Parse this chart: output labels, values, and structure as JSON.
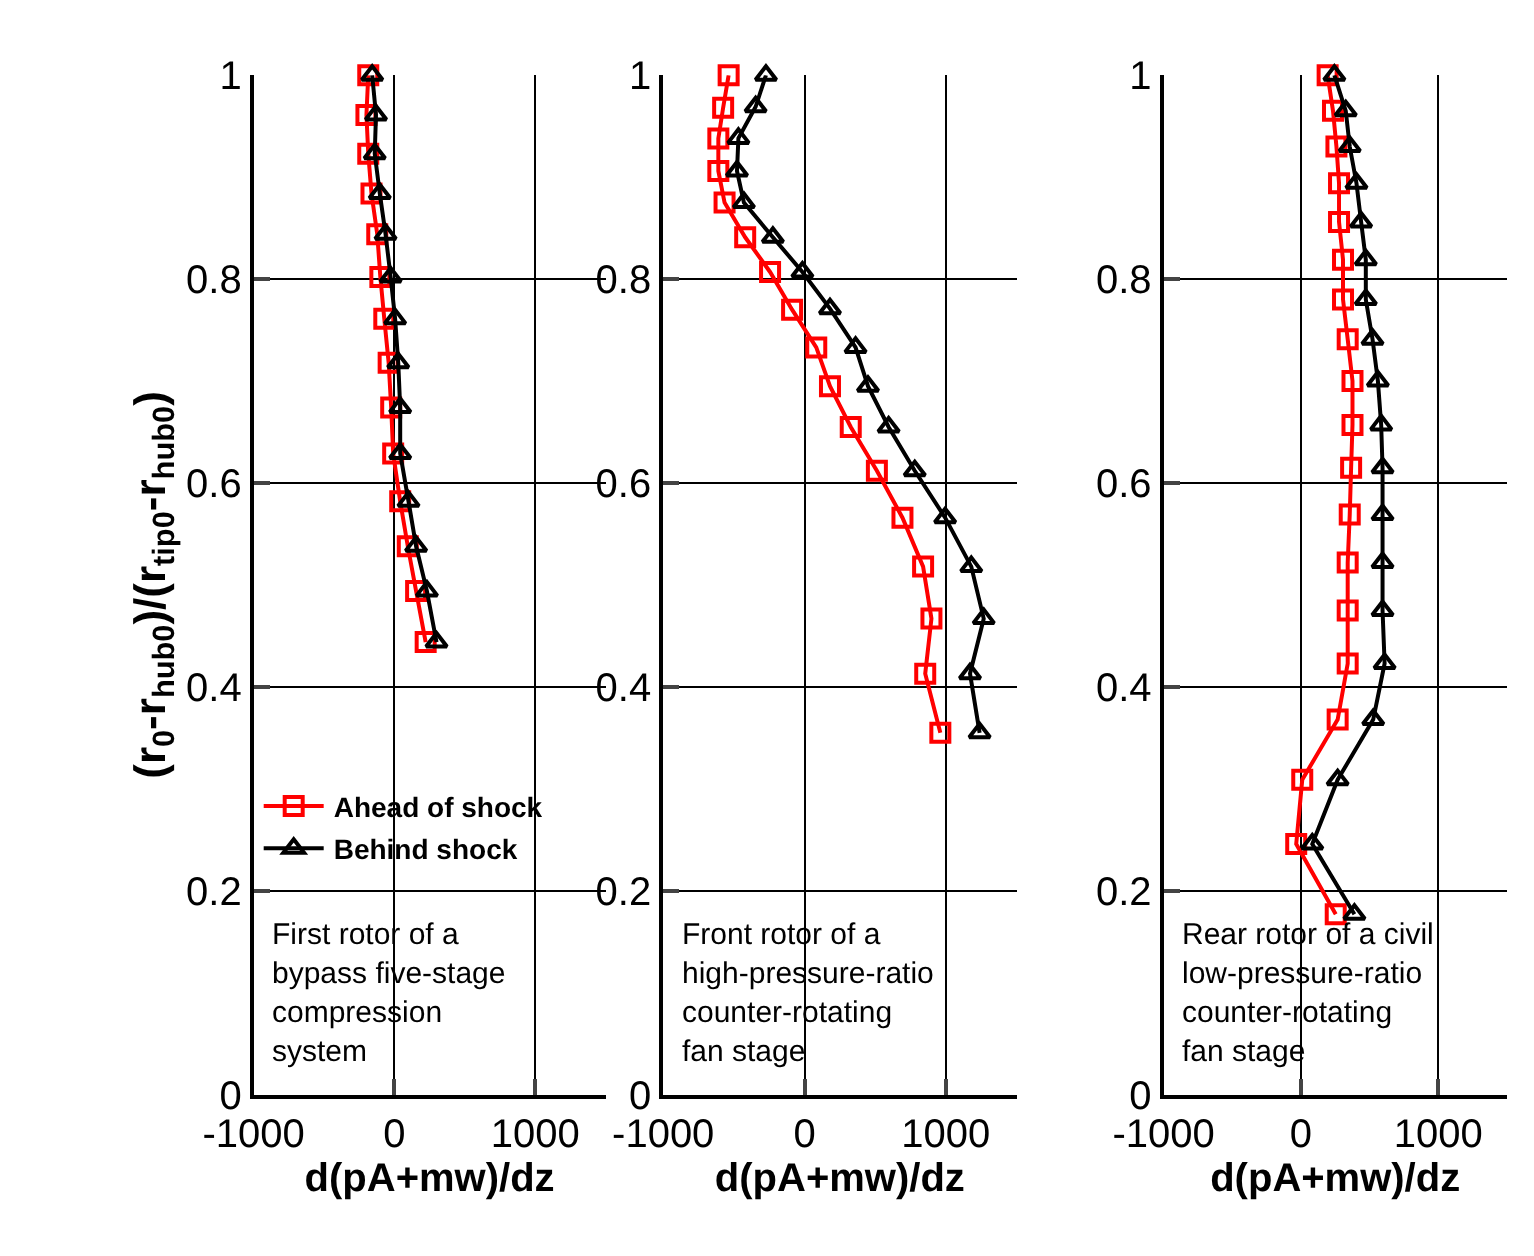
{
  "chart_data": [
    {
      "type": "line",
      "xlabel": "d(pA+mw)/dz",
      "ylabel": "(r$_{0}$-r$_{hub0}$)/(r$_{tip0}$-r$_{hub0}$)",
      "xlim": [
        -1000,
        1500
      ],
      "ylim": [
        0,
        1
      ],
      "xticks": [
        -1000,
        0,
        1000
      ],
      "yticks": [
        0,
        0.2,
        0.4,
        0.6,
        0.8,
        1
      ],
      "grid": true,
      "legend": "bottom left",
      "line_style": "solid",
      "annotations": [
        "First rotor of a\nbypass five-stage\ncompression\nsystem"
      ],
      "series": [
        {
          "name": "Ahead of shock",
          "color": "#ff0000",
          "marker": "square",
          "x": [
            -186,
            -199,
            -186,
            -163,
            -122,
            -100,
            -72,
            -41,
            -23,
            -9,
            41,
            95,
            154,
            222
          ],
          "values": [
            1.0,
            0.961,
            0.923,
            0.884,
            0.844,
            0.802,
            0.761,
            0.718,
            0.674,
            0.629,
            0.582,
            0.538,
            0.494,
            0.444
          ]
        },
        {
          "name": "Behind shock",
          "color": "#000000",
          "marker": "triangle",
          "x": [
            -158,
            -131,
            -140,
            -104,
            -63,
            -27,
            5,
            27,
            41,
            41,
            100,
            154,
            231,
            299
          ],
          "values": [
            1.0,
            0.961,
            0.923,
            0.884,
            0.844,
            0.802,
            0.761,
            0.718,
            0.674,
            0.629,
            0.582,
            0.538,
            0.494,
            0.444
          ]
        }
      ]
    },
    {
      "type": "line",
      "xlabel": "d(pA+mw)/dz",
      "xlim": [
        -1000,
        1500
      ],
      "ylim": [
        0,
        1
      ],
      "xticks": [
        -1000,
        0,
        1000
      ],
      "yticks": [
        0,
        0.2,
        0.4,
        0.6,
        0.8,
        1
      ],
      "grid": true,
      "line_style": "solid",
      "annotations": [
        "Front rotor of a\nhigh-pressure-ratio\ncounter-rotating\nfan stage"
      ],
      "series": [
        {
          "color": "#ff0000",
          "marker": "square",
          "x": [
            -537,
            -576,
            -610,
            -610,
            -566,
            -420,
            -244,
            -88,
            83,
            180,
            327,
            512,
            693,
            839,
            898,
            854,
            961
          ],
          "values": [
            1.0,
            0.968,
            0.938,
            0.906,
            0.875,
            0.841,
            0.807,
            0.77,
            0.733,
            0.695,
            0.655,
            0.612,
            0.566,
            0.518,
            0.467,
            0.413,
            0.355
          ]
        },
        {
          "color": "#000000",
          "marker": "triangle",
          "x": [
            -273,
            -346,
            -468,
            -478,
            -429,
            -224,
            -15,
            180,
            361,
            449,
            595,
            780,
            995,
            1180,
            1268,
            1171,
            1239
          ],
          "values": [
            1.0,
            0.969,
            0.938,
            0.906,
            0.875,
            0.841,
            0.807,
            0.771,
            0.733,
            0.695,
            0.655,
            0.612,
            0.566,
            0.518,
            0.467,
            0.413,
            0.355
          ]
        }
      ]
    },
    {
      "type": "line",
      "xlabel": "d(pA+mw)/dz",
      "xlim": [
        -1000,
        1500
      ],
      "ylim": [
        0,
        1
      ],
      "xticks": [
        -1000,
        0,
        1000
      ],
      "yticks": [
        0,
        0.2,
        0.4,
        0.6,
        0.8,
        1
      ],
      "grid": true,
      "line_style": "solid",
      "annotations": [
        "Rear rotor of a civil\nlow-pressure-ratio\ncounter-rotating\nfan stage"
      ],
      "series": [
        {
          "color": "#ff0000",
          "marker": "square",
          "x": [
            195,
            234,
            259,
            278,
            278,
            307,
            307,
            341,
            376,
            376,
            366,
            356,
            341,
            341,
            341,
            268,
            10,
            -34,
            254
          ],
          "values": [
            1.0,
            0.965,
            0.93,
            0.894,
            0.856,
            0.819,
            0.78,
            0.741,
            0.7,
            0.657,
            0.615,
            0.569,
            0.522,
            0.475,
            0.423,
            0.368,
            0.309,
            0.246,
            0.177
          ]
        },
        {
          "color": "#000000",
          "marker": "triangle",
          "x": [
            244,
            327,
            356,
            405,
            439,
            473,
            473,
            522,
            561,
            585,
            595,
            595,
            595,
            595,
            610,
            527,
            268,
            83,
            390
          ],
          "values": [
            1.0,
            0.965,
            0.93,
            0.894,
            0.856,
            0.819,
            0.78,
            0.741,
            0.7,
            0.657,
            0.615,
            0.569,
            0.522,
            0.475,
            0.423,
            0.368,
            0.309,
            0.246,
            0.177
          ]
        }
      ]
    }
  ]
}
